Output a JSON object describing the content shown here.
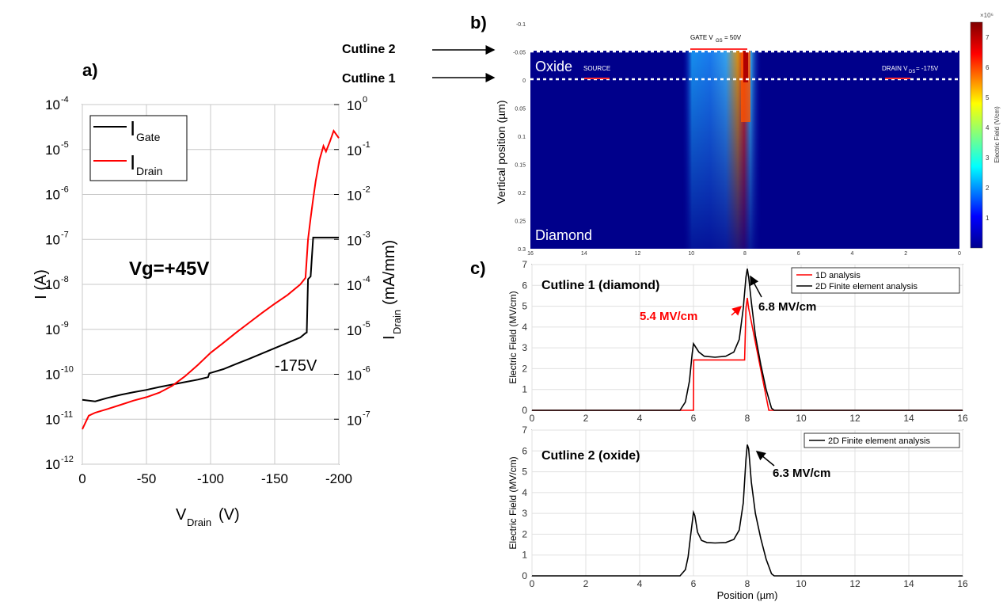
{
  "panel_labels": {
    "a": "a)",
    "b": "b)",
    "c": "c)"
  },
  "colors": {
    "gate": "#000000",
    "drain": "#ff0000",
    "oneD": "#ff0000",
    "twoD": "#000000",
    "field_bg": "#00008b"
  },
  "chart_data": [
    {
      "id": "a",
      "type": "line",
      "xlabel": "V",
      "xlabel_sub": "Drain",
      "xlabel_unit": " (V)",
      "ylabel": "I (A)",
      "y2label": "I",
      "y2label_sub": "Drain",
      "y2label_unit": " (mA/mm)",
      "xlim": [
        0,
        -200
      ],
      "x_ticks": [
        "0",
        "-50",
        "-100",
        "-150",
        "-200"
      ],
      "ylim_log": [
        -12,
        -4
      ],
      "y_ticks": [
        "10-12",
        "10-11",
        "10-10",
        "10-9",
        "10-8",
        "10-7",
        "10-6",
        "10-5",
        "10-4"
      ],
      "y2_ticks": [
        "10-7",
        "10-6",
        "10-5",
        "10-4",
        "10-3",
        "10-2",
        "10-1",
        "100"
      ],
      "y2_tick_exps": [
        -7,
        -6,
        -5,
        -4,
        -3,
        -2,
        -1,
        0
      ],
      "y2_tick_base": [
        "10",
        "10",
        "10",
        "10",
        "10",
        "10",
        "10",
        "10"
      ],
      "y_tick_base": [
        "10",
        "10",
        "10",
        "10",
        "10",
        "10",
        "10",
        "10",
        "10"
      ],
      "y_tick_exps": [
        "-12",
        "-11",
        "-10",
        "-9",
        "-8",
        "-7",
        "-6",
        "-5",
        "-4"
      ],
      "y2_tick_exp_labels": [
        "-7",
        "-6",
        "-5",
        "-4",
        "-3",
        "-2",
        "-1",
        "0"
      ],
      "annotation": "Vg=+45V",
      "annotation2": "-175V",
      "legend": [
        {
          "name": "I",
          "sub": "Gate"
        },
        {
          "name": "I",
          "sub": "Drain"
        }
      ],
      "series": [
        {
          "name": "IGate",
          "color": "#000000",
          "x": [
            0,
            -10,
            -20,
            -30,
            -40,
            -50,
            -60,
            -70,
            -80,
            -90,
            -98,
            -99,
            -110,
            -120,
            -130,
            -140,
            -150,
            -160,
            -170,
            -174,
            -175,
            -176,
            -178,
            -180,
            -200
          ],
          "y": [
            2.7e-11,
            2.5e-11,
            3e-11,
            3.5e-11,
            4e-11,
            4.5e-11,
            5.2e-11,
            5.9e-11,
            6.7e-11,
            7.6e-11,
            8.6e-11,
            1.05e-10,
            1.3e-10,
            1.7e-10,
            2.2e-10,
            2.9e-10,
            3.8e-10,
            5e-10,
            6.6e-10,
            8.2e-10,
            8.5e-10,
            1.3e-08,
            1.5e-08,
            1.1e-07,
            1.1e-07
          ]
        },
        {
          "name": "IDrain",
          "color": "#ff0000",
          "x": [
            0,
            -5,
            -10,
            -20,
            -30,
            -40,
            -50,
            -60,
            -70,
            -80,
            -90,
            -100,
            -110,
            -120,
            -130,
            -140,
            -150,
            -160,
            -170,
            -174,
            -176,
            -178,
            -180,
            -182,
            -185,
            -188,
            -190,
            -193,
            -196,
            -200
          ],
          "y": [
            6e-12,
            1.2e-11,
            1.4e-11,
            1.7e-11,
            2.1e-11,
            2.6e-11,
            3.1e-11,
            3.9e-11,
            5.5e-11,
            9e-11,
            1.6e-10,
            3e-10,
            5e-10,
            8.5e-10,
            1.4e-09,
            2.3e-09,
            3.7e-09,
            5.8e-09,
            1e-08,
            1.4e-08,
            1e-07,
            3e-07,
            8e-07,
            2e-06,
            6e-06,
            1.2e-05,
            9e-06,
            1.5e-05,
            2.6e-05,
            1.8e-05
          ]
        }
      ]
    },
    {
      "id": "b",
      "type": "heatmap",
      "ylabel": "Vertical position (µm)",
      "y_ticks": [
        "-0.1",
        "-0.05",
        "0",
        "0.05",
        "0.1",
        "0.15",
        "0.2",
        "0.25",
        "0.3"
      ],
      "x_ticks": [
        "16",
        "14",
        "12",
        "10",
        "8",
        "6",
        "4",
        "2",
        "0"
      ],
      "colorbar_label": "Electric Field (V/cm)",
      "colorbar_ticks": [
        "1",
        "2",
        "3",
        "4",
        "5",
        "6",
        "7"
      ],
      "colorbar_exp": "×10⁶",
      "labels": {
        "oxide": "Oxide",
        "diamond": "Diamond",
        "source": "SOURCE",
        "gate": "GATE V",
        "gate_sub": "GS",
        "gate_val": "= 50V",
        "drain": "DRAIN V",
        "drain_sub": "DS",
        "drain_val": " = -175V"
      },
      "cutlines": [
        "Cutline 2",
        "Cutline 1"
      ]
    },
    {
      "id": "c1",
      "type": "line",
      "title": "Cutline 1 (diamond)",
      "xlabel": "",
      "ylabel": "Electric Field (MV/cm)",
      "xlim": [
        0,
        16
      ],
      "ylim": [
        0,
        7
      ],
      "x_ticks": [
        "0",
        "2",
        "4",
        "6",
        "8",
        "10",
        "12",
        "14",
        "16"
      ],
      "y_ticks": [
        "0",
        "1",
        "2",
        "3",
        "4",
        "5",
        "6",
        "7"
      ],
      "legend": [
        "1D analysis",
        "2D Finite element analysis"
      ],
      "annotations": [
        "5.4 MV/cm",
        "6.8 MV/cm"
      ],
      "series": [
        {
          "name": "1D analysis",
          "color": "#ff0000",
          "x": [
            0,
            5.95,
            6.0,
            6.01,
            7.9,
            7.95,
            8.0,
            8.05,
            8.8,
            9.0,
            16
          ],
          "y": [
            0,
            0,
            0,
            2.42,
            2.42,
            4.9,
            5.4,
            4.9,
            0,
            0,
            0
          ]
        },
        {
          "name": "2D Finite element analysis",
          "color": "#000000",
          "x": [
            0,
            5.5,
            5.7,
            5.85,
            5.95,
            6.0,
            6.05,
            6.2,
            6.4,
            6.8,
            7.2,
            7.5,
            7.7,
            7.85,
            7.95,
            8.0,
            8.05,
            8.15,
            8.3,
            8.5,
            8.7,
            8.9,
            9.0,
            16
          ],
          "y": [
            0,
            0,
            0.4,
            1.4,
            2.7,
            3.2,
            3.1,
            2.8,
            2.6,
            2.55,
            2.6,
            2.8,
            3.4,
            4.9,
            6.4,
            6.8,
            6.4,
            5.2,
            3.6,
            2.2,
            1.0,
            0.1,
            0,
            0
          ]
        }
      ]
    },
    {
      "id": "c2",
      "type": "line",
      "title": "Cutline 2 (oxide)",
      "xlabel": "Position (µm)",
      "ylabel": "Electric Field (MV/cm)",
      "xlim": [
        0,
        16
      ],
      "ylim": [
        0,
        7
      ],
      "x_ticks": [
        "0",
        "2",
        "4",
        "6",
        "8",
        "10",
        "12",
        "14",
        "16"
      ],
      "y_ticks": [
        "0",
        "1",
        "2",
        "3",
        "4",
        "5",
        "6",
        "7"
      ],
      "legend": [
        "2D Finite element analysis"
      ],
      "annotations": [
        "6.3 MV/cm"
      ],
      "series": [
        {
          "name": "2D Finite element analysis",
          "color": "#000000",
          "x": [
            0,
            5.5,
            5.7,
            5.8,
            5.9,
            6.0,
            6.05,
            6.15,
            6.3,
            6.5,
            6.8,
            7.2,
            7.5,
            7.7,
            7.85,
            7.95,
            8.0,
            8.05,
            8.15,
            8.3,
            8.5,
            8.7,
            8.9,
            9.0,
            16
          ],
          "y": [
            0,
            0,
            0.3,
            0.9,
            2.0,
            3.05,
            2.9,
            2.1,
            1.7,
            1.6,
            1.58,
            1.6,
            1.75,
            2.2,
            3.5,
            5.6,
            6.3,
            6.1,
            4.5,
            3.0,
            1.8,
            0.8,
            0.1,
            0,
            0
          ]
        }
      ]
    }
  ]
}
